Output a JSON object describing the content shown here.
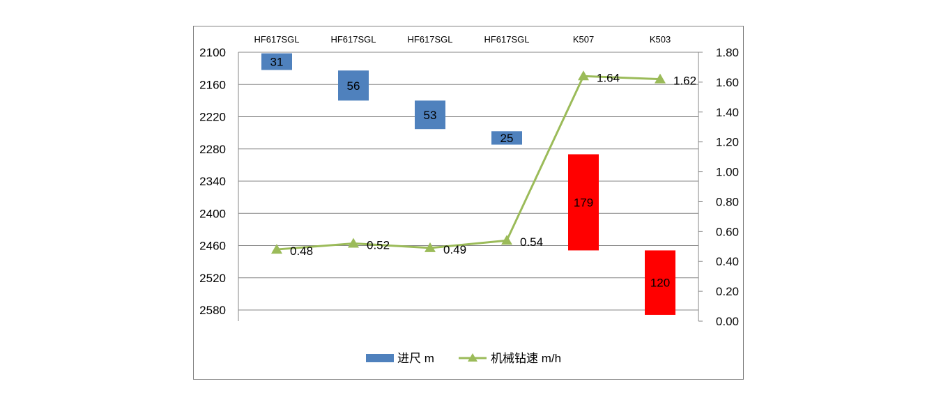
{
  "chart_data": {
    "type": "bar",
    "categories": [
      "HF617SGL",
      "HF617SGL",
      "HF617SGL",
      "HF617SGL",
      "K507",
      "K503"
    ],
    "series": [
      {
        "name": "进尺 m",
        "kind": "floating-bar",
        "axis": "left",
        "start_depth": [
          2102,
          2134,
          2190,
          2247,
          2290,
          2469
        ],
        "values": [
          31,
          56,
          53,
          25,
          179,
          120
        ],
        "colors": [
          "#4f81bd",
          "#4f81bd",
          "#4f81bd",
          "#4f81bd",
          "#ff0000",
          "#ff0000"
        ]
      },
      {
        "name": "机械钻速 m/h",
        "kind": "line",
        "axis": "right",
        "marker": "triangle",
        "color": "#9bbb59",
        "values": [
          0.48,
          0.52,
          0.49,
          0.54,
          1.64,
          1.62
        ],
        "labels": [
          "0.48",
          "0.52",
          "0.49",
          "0.54",
          "1.64",
          "1.62"
        ]
      }
    ],
    "left_axis": {
      "reversed": true,
      "ticks": [
        "2100",
        "2160",
        "2220",
        "2280",
        "2340",
        "2400",
        "2460",
        "2520",
        "2580"
      ],
      "ylim": [
        2100,
        2580
      ]
    },
    "right_axis": {
      "ticks": [
        "1.80",
        "1.60",
        "1.40",
        "1.20",
        "1.00",
        "0.80",
        "0.60",
        "0.40",
        "0.20",
        "0.00"
      ],
      "ylim": [
        0,
        1.8
      ]
    },
    "grid": true,
    "legend_position": "bottom"
  }
}
